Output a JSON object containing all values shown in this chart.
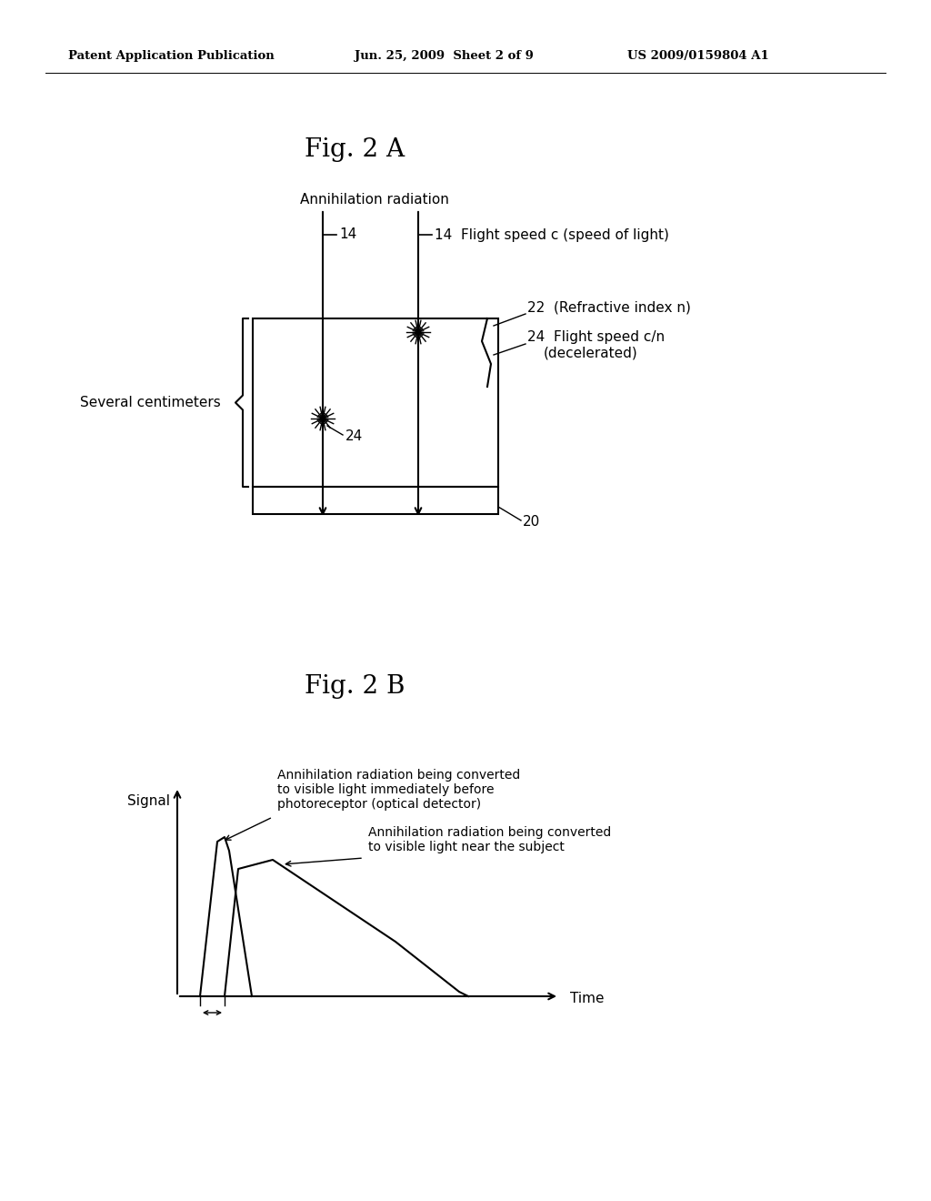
{
  "bg_color": "#ffffff",
  "header_left": "Patent Application Publication",
  "header_center": "Jun. 25, 2009  Sheet 2 of 9",
  "header_right": "US 2009/0159804 A1",
  "fig2a_title": "Fig. 2 A",
  "fig2b_title": "Fig. 2 B",
  "annihilation_label": "Annihilation radiation",
  "label_14_left": "14",
  "label_14_right": "14",
  "label_22": "22",
  "label_24_right": "24",
  "label_24_inner": "24",
  "label_20": "20",
  "flight_speed_c": "Flight speed c (speed of light)",
  "refractive_index": "(Refractive index n)",
  "flight_speed_cn": "Flight speed c/n",
  "decelerated": "(decelerated)",
  "several_cm": "Several centimeters",
  "signal_label": "Signal",
  "time_label": "Time",
  "annotation1_line1": "Annihilation radiation being converted",
  "annotation1_line2": "to visible light immediately before",
  "annotation1_line3": "photoreceptor (optical detector)",
  "annotation2_line1": "Annihilation radiation being converted",
  "annotation2_line2": "to visible light near the subject"
}
